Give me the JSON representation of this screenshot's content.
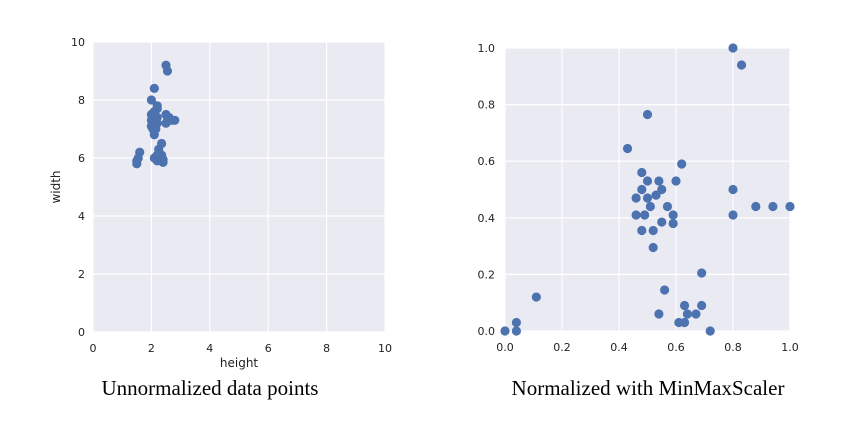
{
  "chart_data": [
    {
      "type": "scatter",
      "title": "",
      "xlabel": "height",
      "ylabel": "width",
      "xlim": [
        0,
        10
      ],
      "ylim": [
        0,
        10
      ],
      "xticks": [
        "0",
        "2",
        "4",
        "6",
        "8",
        "10"
      ],
      "yticks": [
        "0",
        "2",
        "4",
        "6",
        "8",
        "10"
      ],
      "grid": true,
      "caption": "Unnormalized data points",
      "colors": {
        "background": "#eaeaf2",
        "grid": "#ffffff",
        "point": "#4c72b0"
      },
      "points": [
        [
          1.5,
          5.8
        ],
        [
          1.5,
          5.9
        ],
        [
          1.55,
          6.0
        ],
        [
          1.6,
          6.2
        ],
        [
          2.0,
          8.0
        ],
        [
          2.1,
          8.4
        ],
        [
          2.0,
          7.5
        ],
        [
          2.0,
          7.3
        ],
        [
          2.0,
          7.1
        ],
        [
          2.05,
          7.0
        ],
        [
          2.1,
          6.8
        ],
        [
          2.1,
          7.6
        ],
        [
          2.2,
          7.7
        ],
        [
          2.2,
          7.8
        ],
        [
          2.2,
          7.4
        ],
        [
          2.2,
          7.2
        ],
        [
          2.15,
          7.0
        ],
        [
          2.1,
          6.0
        ],
        [
          2.2,
          5.9
        ],
        [
          2.2,
          6.1
        ],
        [
          2.25,
          6.3
        ],
        [
          2.3,
          6.0
        ],
        [
          2.35,
          6.1
        ],
        [
          2.4,
          5.85
        ],
        [
          2.4,
          5.95
        ],
        [
          2.35,
          6.5
        ],
        [
          2.5,
          7.2
        ],
        [
          2.55,
          7.3
        ],
        [
          2.5,
          7.5
        ],
        [
          2.6,
          7.4
        ],
        [
          2.7,
          7.3
        ],
        [
          2.8,
          7.3
        ],
        [
          2.5,
          9.2
        ],
        [
          2.55,
          9.0
        ]
      ]
    },
    {
      "type": "scatter",
      "title": "",
      "xlabel": "",
      "ylabel": "",
      "xlim": [
        0,
        1.0
      ],
      "ylim": [
        0,
        1.0
      ],
      "xticks": [
        "0.0",
        "0.2",
        "0.4",
        "0.6",
        "0.8",
        "1.0"
      ],
      "yticks": [
        "0.0",
        "0.2",
        "0.4",
        "0.6",
        "0.8",
        "1.0"
      ],
      "grid": true,
      "caption": "Normalized with MinMaxScaler",
      "colors": {
        "background": "#eaeaf2",
        "grid": "#ffffff",
        "point": "#4c72b0"
      },
      "points": [
        [
          0.0,
          0.0
        ],
        [
          0.04,
          0.0
        ],
        [
          0.04,
          0.03
        ],
        [
          0.11,
          0.12
        ],
        [
          0.43,
          0.645
        ],
        [
          0.5,
          0.765
        ],
        [
          0.8,
          1.0
        ],
        [
          0.83,
          0.94
        ],
        [
          0.48,
          0.56
        ],
        [
          0.5,
          0.53
        ],
        [
          0.54,
          0.53
        ],
        [
          0.48,
          0.5
        ],
        [
          0.55,
          0.5
        ],
        [
          0.53,
          0.48
        ],
        [
          0.46,
          0.47
        ],
        [
          0.5,
          0.47
        ],
        [
          0.51,
          0.44
        ],
        [
          0.57,
          0.44
        ],
        [
          0.46,
          0.41
        ],
        [
          0.49,
          0.41
        ],
        [
          0.59,
          0.41
        ],
        [
          0.55,
          0.385
        ],
        [
          0.59,
          0.38
        ],
        [
          0.48,
          0.355
        ],
        [
          0.52,
          0.355
        ],
        [
          0.52,
          0.295
        ],
        [
          0.6,
          0.53
        ],
        [
          0.62,
          0.59
        ],
        [
          0.8,
          0.5
        ],
        [
          0.8,
          0.41
        ],
        [
          0.88,
          0.44
        ],
        [
          0.94,
          0.44
        ],
        [
          1.0,
          0.44
        ],
        [
          0.56,
          0.145
        ],
        [
          0.69,
          0.205
        ],
        [
          0.63,
          0.09
        ],
        [
          0.69,
          0.09
        ],
        [
          0.54,
          0.06
        ],
        [
          0.64,
          0.06
        ],
        [
          0.67,
          0.06
        ],
        [
          0.61,
          0.03
        ],
        [
          0.63,
          0.03
        ],
        [
          0.72,
          0.0
        ]
      ]
    }
  ]
}
